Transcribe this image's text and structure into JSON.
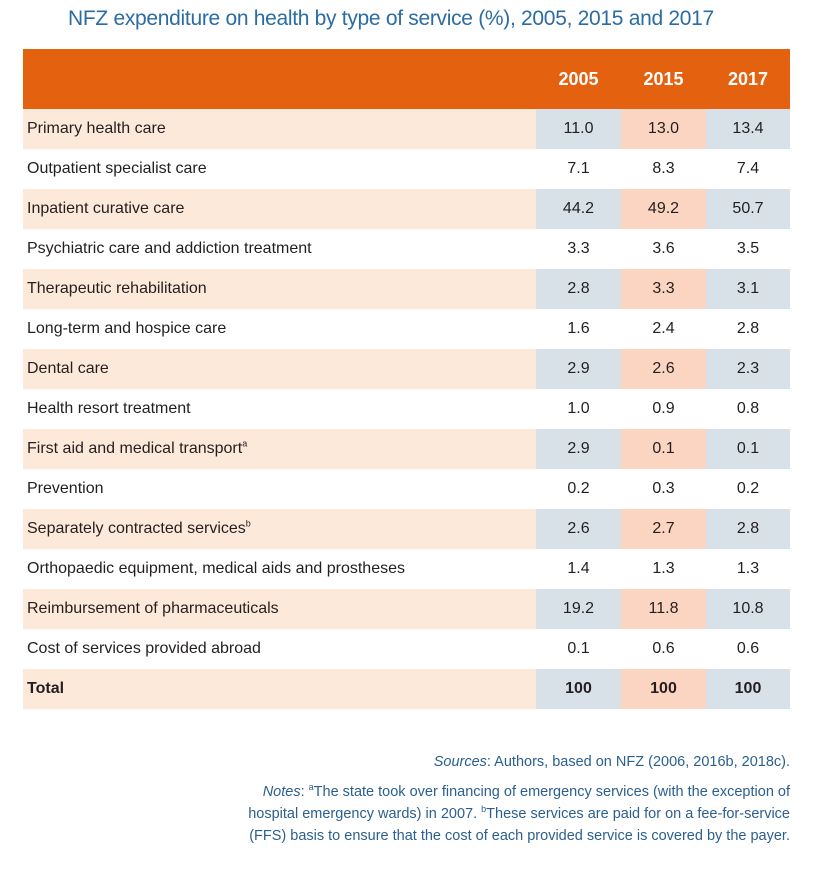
{
  "title": "NFZ expenditure on health by type of service (%), 2005, 2015 and 2017",
  "table": {
    "columns": [
      "",
      "2005",
      "2015",
      "2017"
    ],
    "rows": [
      {
        "label": "Primary health care",
        "sup": "",
        "v2005": "11.0",
        "v2015": "13.0",
        "v2017": "13.4"
      },
      {
        "label": "Outpatient specialist care",
        "sup": "",
        "v2005": "7.1",
        "v2015": "8.3",
        "v2017": "7.4"
      },
      {
        "label": "Inpatient curative care",
        "sup": "",
        "v2005": "44.2",
        "v2015": "49.2",
        "v2017": "50.7"
      },
      {
        "label": "Psychiatric care and addiction treatment",
        "sup": "",
        "v2005": "3.3",
        "v2015": "3.6",
        "v2017": "3.5"
      },
      {
        "label": "Therapeutic rehabilitation",
        "sup": "",
        "v2005": "2.8",
        "v2015": "3.3",
        "v2017": "3.1"
      },
      {
        "label": "Long-term and hospice care",
        "sup": "",
        "v2005": "1.6",
        "v2015": "2.4",
        "v2017": "2.8"
      },
      {
        "label": "Dental care",
        "sup": "",
        "v2005": "2.9",
        "v2015": "2.6",
        "v2017": "2.3"
      },
      {
        "label": "Health resort treatment",
        "sup": "",
        "v2005": "1.0",
        "v2015": "0.9",
        "v2017": "0.8"
      },
      {
        "label": "First aid and medical transport",
        "sup": "a",
        "v2005": "2.9",
        "v2015": "0.1",
        "v2017": "0.1"
      },
      {
        "label": "Prevention",
        "sup": "",
        "v2005": "0.2",
        "v2015": "0.3",
        "v2017": "0.2"
      },
      {
        "label": "Separately contracted services",
        "sup": "b",
        "v2005": "2.6",
        "v2015": "2.7",
        "v2017": "2.8"
      },
      {
        "label": "Orthopaedic equipment, medical aids and prostheses",
        "sup": "",
        "v2005": "1.4",
        "v2015": "1.3",
        "v2017": "1.3"
      },
      {
        "label": "Reimbursement of pharmaceuticals",
        "sup": "",
        "v2005": "19.2",
        "v2015": "11.8",
        "v2017": "10.8"
      },
      {
        "label": "Cost of services provided abroad",
        "sup": "",
        "v2005": "0.1",
        "v2015": "0.6",
        "v2017": "0.6"
      },
      {
        "label": "Total",
        "sup": "",
        "v2005": "100",
        "v2015": "100",
        "v2017": "100"
      }
    ]
  },
  "sources": {
    "label": "Sources",
    "text": ": Authors, based on NFZ (2006, 2016b, 2018c)."
  },
  "notes": {
    "label": "Notes",
    "sup_a": "a",
    "text_a": "The state took over financing of emergency services (with the exception of hospital emergency wards) in 2007. ",
    "sup_b": "b",
    "text_b": "These services are paid for on a fee-for-service (FFS) basis to ensure that the cost of each provided service is covered by the payer."
  }
}
